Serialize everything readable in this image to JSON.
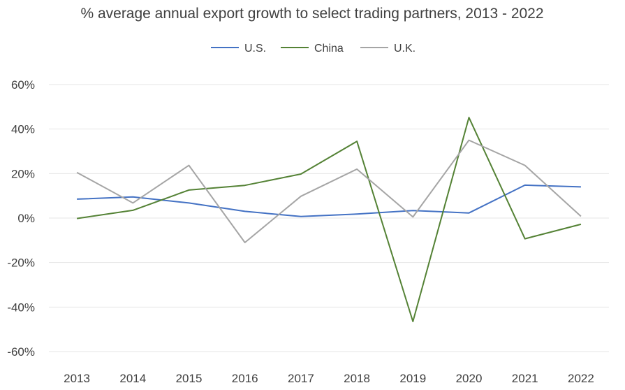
{
  "chart_data": {
    "type": "line",
    "title": "% average annual export growth to select trading partners, 2013 - 2022",
    "xlabel": "",
    "ylabel": "",
    "categories": [
      "2013",
      "2014",
      "2015",
      "2016",
      "2017",
      "2018",
      "2019",
      "2020",
      "2021",
      "2022"
    ],
    "ylim": [
      -60,
      60
    ],
    "yticks": [
      60,
      40,
      20,
      0,
      -20,
      -40,
      -60
    ],
    "ytick_labels": [
      "60%",
      "40%",
      "20%",
      "0%",
      "-20%",
      "-40%",
      "-60%"
    ],
    "grid": true,
    "legend_position": "top-center",
    "series": [
      {
        "name": "U.S.",
        "color": "#4472c4",
        "values": [
          8.5,
          9.5,
          6.8,
          3.0,
          0.7,
          1.8,
          3.4,
          2.3,
          14.8,
          14.0
        ]
      },
      {
        "name": "China",
        "color": "#548235",
        "values": [
          -0.2,
          3.5,
          12.6,
          14.7,
          19.8,
          34.5,
          -46.5,
          45.2,
          -9.3,
          -2.8
        ]
      },
      {
        "name": "U.K.",
        "color": "#a5a5a5",
        "values": [
          20.5,
          6.8,
          23.7,
          -11.0,
          9.8,
          22.0,
          0.5,
          35.0,
          23.7,
          0.8
        ]
      }
    ]
  }
}
